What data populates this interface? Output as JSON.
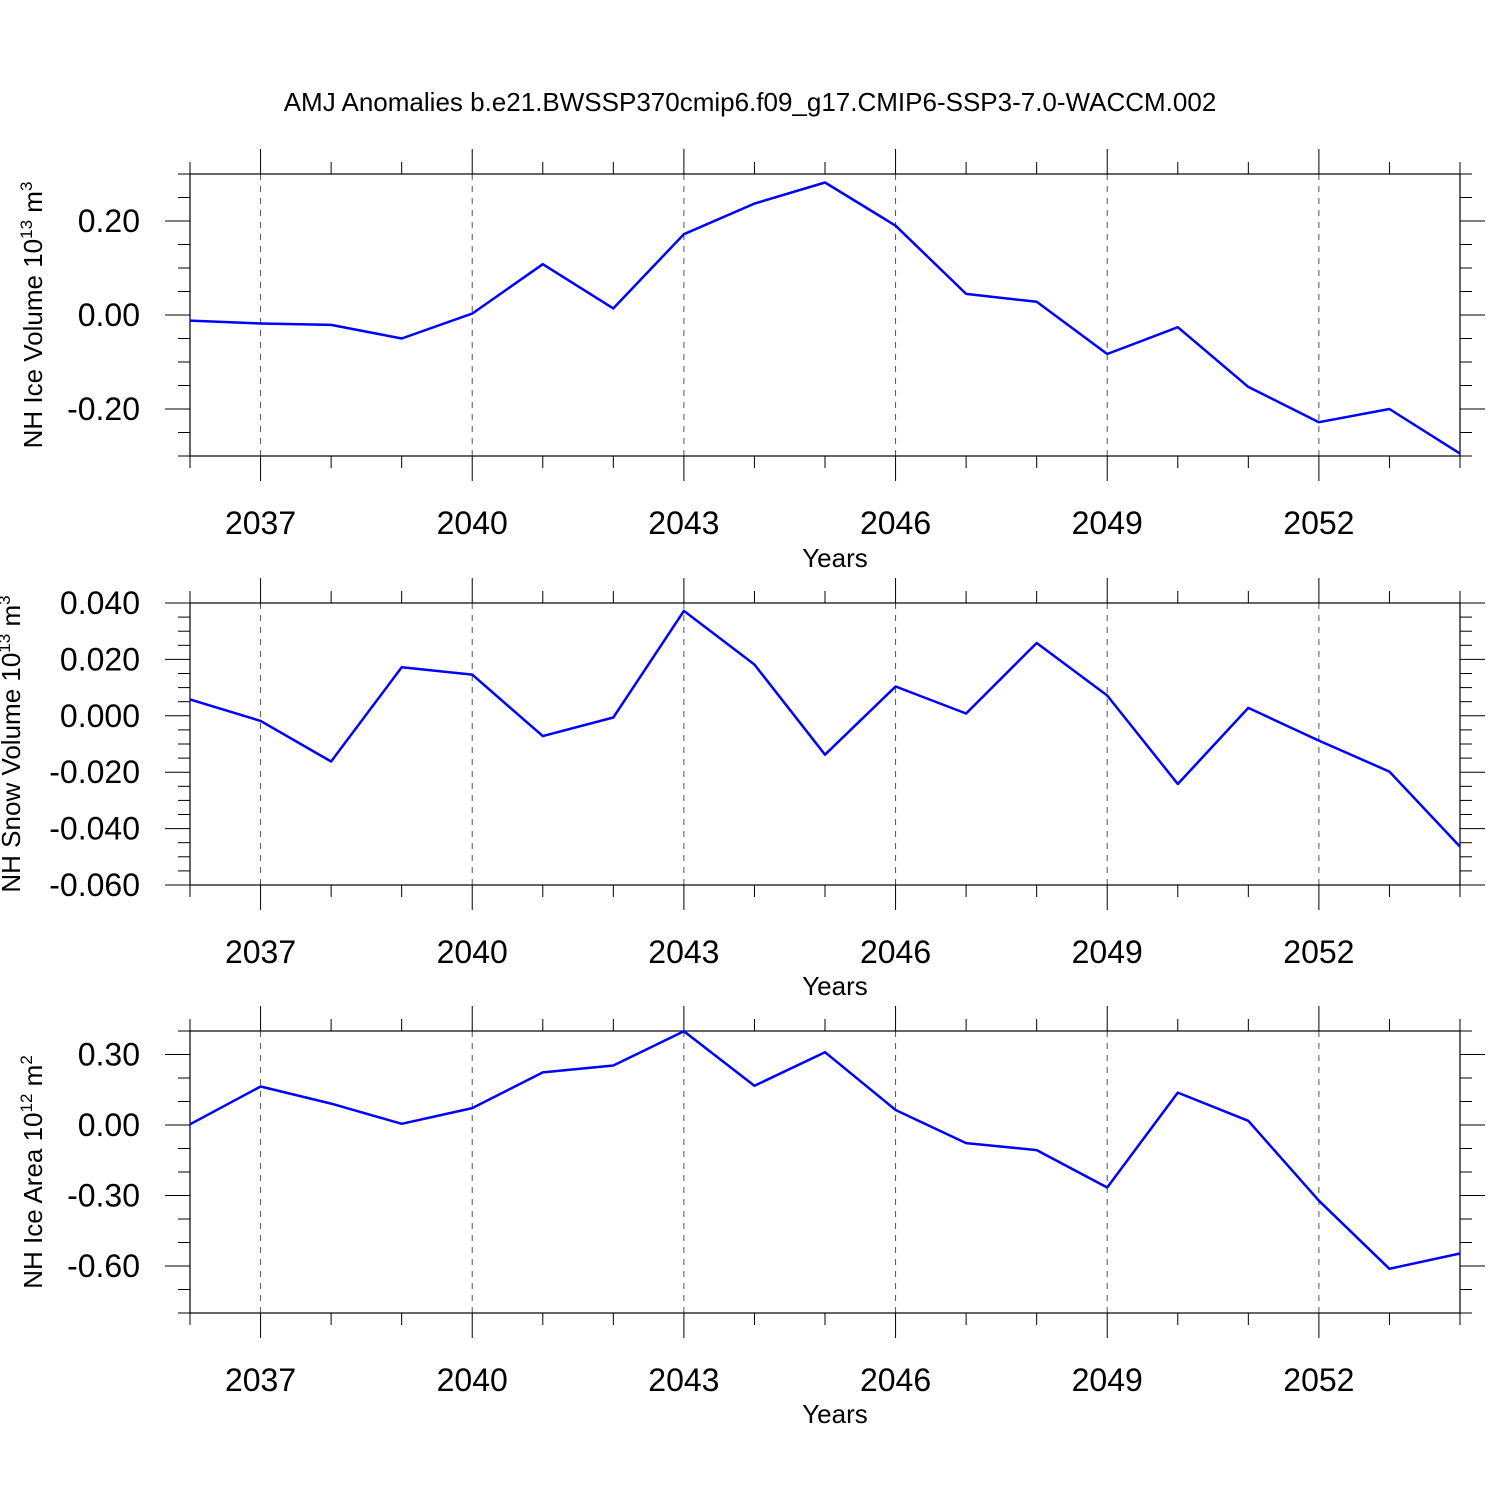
{
  "title": "AMJ Anomalies b.e21.BWSSP370cmip6.f09_g17.CMIP6-SSP3-7.0-WACCM.002",
  "colors": {
    "line": "#0000ff",
    "axis": "#000000",
    "grid": "#000000"
  },
  "chart_data": [
    {
      "type": "line",
      "ylabel": "NH Ice Volume 10",
      "ylabel_exp": "13",
      "ylabel_unit": "m",
      "ylabel_unit_exp": "3",
      "xlabel": "Years",
      "xlim": [
        2036,
        2054
      ],
      "ylim": [
        -0.3,
        0.3
      ],
      "x_ticks": [
        2037,
        2040,
        2043,
        2046,
        2049,
        2052
      ],
      "x_tick_labels": [
        "2037",
        "2040",
        "2043",
        "2046",
        "2049",
        "2052"
      ],
      "y_ticks": [
        -0.2,
        0.0,
        0.2
      ],
      "y_tick_labels": [
        "-0.20",
        "0.00",
        "0.20"
      ],
      "grid": "vertical dashed at major x ticks",
      "x": [
        2036,
        2037,
        2038,
        2039,
        2040,
        2041,
        2042,
        2043,
        2044,
        2045,
        2046,
        2047,
        2048,
        2049,
        2050,
        2051,
        2052,
        2053,
        2054
      ],
      "series": [
        {
          "values": [
            -0.012,
            -0.018,
            -0.021,
            -0.05,
            0.003,
            0.108,
            0.014,
            0.172,
            0.237,
            0.282,
            0.19,
            0.045,
            0.028,
            -0.083,
            -0.026,
            -0.153,
            -0.228,
            -0.2,
            -0.295
          ]
        }
      ]
    },
    {
      "type": "line",
      "ylabel": "NH Snow Volume 10",
      "ylabel_exp": "13",
      "ylabel_unit": "m",
      "ylabel_unit_exp": "3",
      "xlabel": "Years",
      "xlim": [
        2036,
        2054
      ],
      "ylim": [
        -0.06,
        0.04
      ],
      "x_ticks": [
        2037,
        2040,
        2043,
        2046,
        2049,
        2052
      ],
      "x_tick_labels": [
        "2037",
        "2040",
        "2043",
        "2046",
        "2049",
        "2052"
      ],
      "y_ticks": [
        -0.06,
        -0.04,
        -0.02,
        0.0,
        0.02,
        0.04
      ],
      "y_tick_labels": [
        "-0.060",
        "-0.040",
        "-0.020",
        "0.000",
        "0.020",
        "0.040"
      ],
      "grid": "vertical dashed at major x ticks",
      "x": [
        2036,
        2037,
        2038,
        2039,
        2040,
        2041,
        2042,
        2043,
        2044,
        2045,
        2046,
        2047,
        2048,
        2049,
        2050,
        2051,
        2052,
        2053,
        2054
      ],
      "series": [
        {
          "values": [
            0.0058,
            -0.0018,
            -0.0162,
            0.0172,
            0.0146,
            -0.0072,
            -0.0006,
            0.0372,
            0.0182,
            -0.0138,
            0.0104,
            0.0008,
            0.0258,
            0.0072,
            -0.0242,
            0.0028,
            -0.0088,
            -0.0198,
            -0.0464
          ]
        }
      ]
    },
    {
      "type": "line",
      "ylabel": "NH Ice Area 10",
      "ylabel_exp": "12",
      "ylabel_unit": "m",
      "ylabel_unit_exp": "2",
      "xlabel": "Years",
      "xlim": [
        2036,
        2054
      ],
      "ylim": [
        -0.8,
        0.4
      ],
      "x_ticks": [
        2037,
        2040,
        2043,
        2046,
        2049,
        2052
      ],
      "x_tick_labels": [
        "2037",
        "2040",
        "2043",
        "2046",
        "2049",
        "2052"
      ],
      "y_ticks": [
        -0.6,
        -0.3,
        0.0,
        0.3
      ],
      "y_tick_labels": [
        "-0.60",
        "-0.30",
        "0.00",
        "0.30"
      ],
      "grid": "vertical dashed at major x ticks",
      "x": [
        2036,
        2037,
        2038,
        2039,
        2040,
        2041,
        2042,
        2043,
        2044,
        2045,
        2046,
        2047,
        2048,
        2049,
        2050,
        2051,
        2052,
        2053,
        2054
      ],
      "series": [
        {
          "values": [
            0.003,
            0.164,
            0.091,
            0.005,
            0.072,
            0.224,
            0.253,
            0.399,
            0.167,
            0.31,
            0.064,
            -0.077,
            -0.107,
            -0.266,
            0.138,
            0.018,
            -0.322,
            -0.612,
            -0.547
          ]
        }
      ]
    }
  ]
}
